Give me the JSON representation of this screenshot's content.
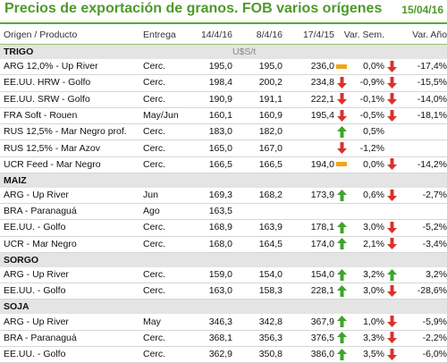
{
  "title": "Precios de exportación de granos. FOB varios orígenes",
  "date": "15/04/16",
  "columns": {
    "producto": "Origen / Producto",
    "entrega": "Entrega",
    "d1": "14/4/16",
    "d2": "8/4/16",
    "d3": "17/4/15",
    "vsem": "Var. Sem.",
    "vano": "Var. Año"
  },
  "colors": {
    "accent": "#4d9a2b",
    "up": "#3ca628",
    "down": "#d9312b",
    "flat": "#f2a51c",
    "section_bg": "#e4e4e4"
  },
  "sections": [
    {
      "name": "TRIGO",
      "unit": "U$S/t",
      "rows": [
        {
          "producto": "ARG 12,0% - Up River",
          "entrega": "Cerc.",
          "d1": "195,0",
          "d2": "195,0",
          "d3": "236,0",
          "ind1": "flat",
          "vsem": "0,0%",
          "ind2": "down",
          "vano": "-17,4%"
        },
        {
          "producto": "EE.UU. HRW - Golfo",
          "entrega": "Cerc.",
          "d1": "198,4",
          "d2": "200,2",
          "d3": "234,8",
          "ind1": "down",
          "vsem": "-0,9%",
          "ind2": "down",
          "vano": "-15,5%"
        },
        {
          "producto": "EE.UU. SRW - Golfo",
          "entrega": "Cerc.",
          "d1": "190,9",
          "d2": "191,1",
          "d3": "222,1",
          "ind1": "down",
          "vsem": "-0,1%",
          "ind2": "down",
          "vano": "-14,0%"
        },
        {
          "producto": "FRA Soft - Rouen",
          "entrega": "May/Jun",
          "d1": "160,1",
          "d2": "160,9",
          "d3": "195,4",
          "ind1": "down",
          "vsem": "-0,5%",
          "ind2": "down",
          "vano": "-18,1%"
        },
        {
          "producto": "RUS 12,5% - Mar Negro prof.",
          "entrega": "Cerc.",
          "d1": "183,0",
          "d2": "182,0",
          "d3": "",
          "ind1": "up",
          "vsem": "0,5%",
          "ind2": "",
          "vano": ""
        },
        {
          "producto": "RUS 12,5% - Mar Azov",
          "entrega": "Cerc.",
          "d1": "165,0",
          "d2": "167,0",
          "d3": "",
          "ind1": "down",
          "vsem": "-1,2%",
          "ind2": "",
          "vano": ""
        },
        {
          "producto": "UCR Feed - Mar Negro",
          "entrega": "Cerc.",
          "d1": "166,5",
          "d2": "166,5",
          "d3": "194,0",
          "ind1": "flat",
          "vsem": "0,0%",
          "ind2": "down",
          "vano": "-14,2%"
        }
      ]
    },
    {
      "name": "MAIZ",
      "unit": "",
      "rows": [
        {
          "producto": "ARG - Up River",
          "entrega": "Jun",
          "d1": "169,3",
          "d2": "168,2",
          "d3": "173,9",
          "ind1": "up",
          "vsem": "0,6%",
          "ind2": "down",
          "vano": "-2,7%"
        },
        {
          "producto": "BRA - Paranaguá",
          "entrega": "Ago",
          "d1": "163,5",
          "d2": "",
          "d3": "",
          "ind1": "",
          "vsem": "",
          "ind2": "",
          "vano": ""
        },
        {
          "producto": "EE.UU. - Golfo",
          "entrega": "Cerc.",
          "d1": "168,9",
          "d2": "163,9",
          "d3": "178,1",
          "ind1": "up",
          "vsem": "3,0%",
          "ind2": "down",
          "vano": "-5,2%"
        },
        {
          "producto": "UCR - Mar Negro",
          "entrega": "Cerc.",
          "d1": "168,0",
          "d2": "164,5",
          "d3": "174,0",
          "ind1": "up",
          "vsem": "2,1%",
          "ind2": "down",
          "vano": "-3,4%"
        }
      ]
    },
    {
      "name": "SORGO",
      "unit": "",
      "rows": [
        {
          "producto": "ARG - Up River",
          "entrega": "Cerc.",
          "d1": "159,0",
          "d2": "154,0",
          "d3": "154,0",
          "ind1": "up",
          "vsem": "3,2%",
          "ind2": "up",
          "vano": "3,2%"
        },
        {
          "producto": "EE.UU. - Golfo",
          "entrega": "Cerc.",
          "d1": "163,0",
          "d2": "158,3",
          "d3": "228,1",
          "ind1": "up",
          "vsem": "3,0%",
          "ind2": "down",
          "vano": "-28,6%"
        }
      ]
    },
    {
      "name": "SOJA",
      "unit": "",
      "rows": [
        {
          "producto": "ARG - Up River",
          "entrega": "May",
          "d1": "346,3",
          "d2": "342,8",
          "d3": "367,9",
          "ind1": "up",
          "vsem": "1,0%",
          "ind2": "down",
          "vano": "-5,9%"
        },
        {
          "producto": "BRA - Paranaguá",
          "entrega": "Cerc.",
          "d1": "368,1",
          "d2": "356,3",
          "d3": "376,5",
          "ind1": "up",
          "vsem": "3,3%",
          "ind2": "down",
          "vano": "-2,2%"
        },
        {
          "producto": "EE.UU. - Golfo",
          "entrega": "Cerc.",
          "d1": "362,9",
          "d2": "350,8",
          "d3": "386,0",
          "ind1": "up",
          "vsem": "3,5%",
          "ind2": "down",
          "vano": "-6,0%"
        }
      ]
    }
  ]
}
